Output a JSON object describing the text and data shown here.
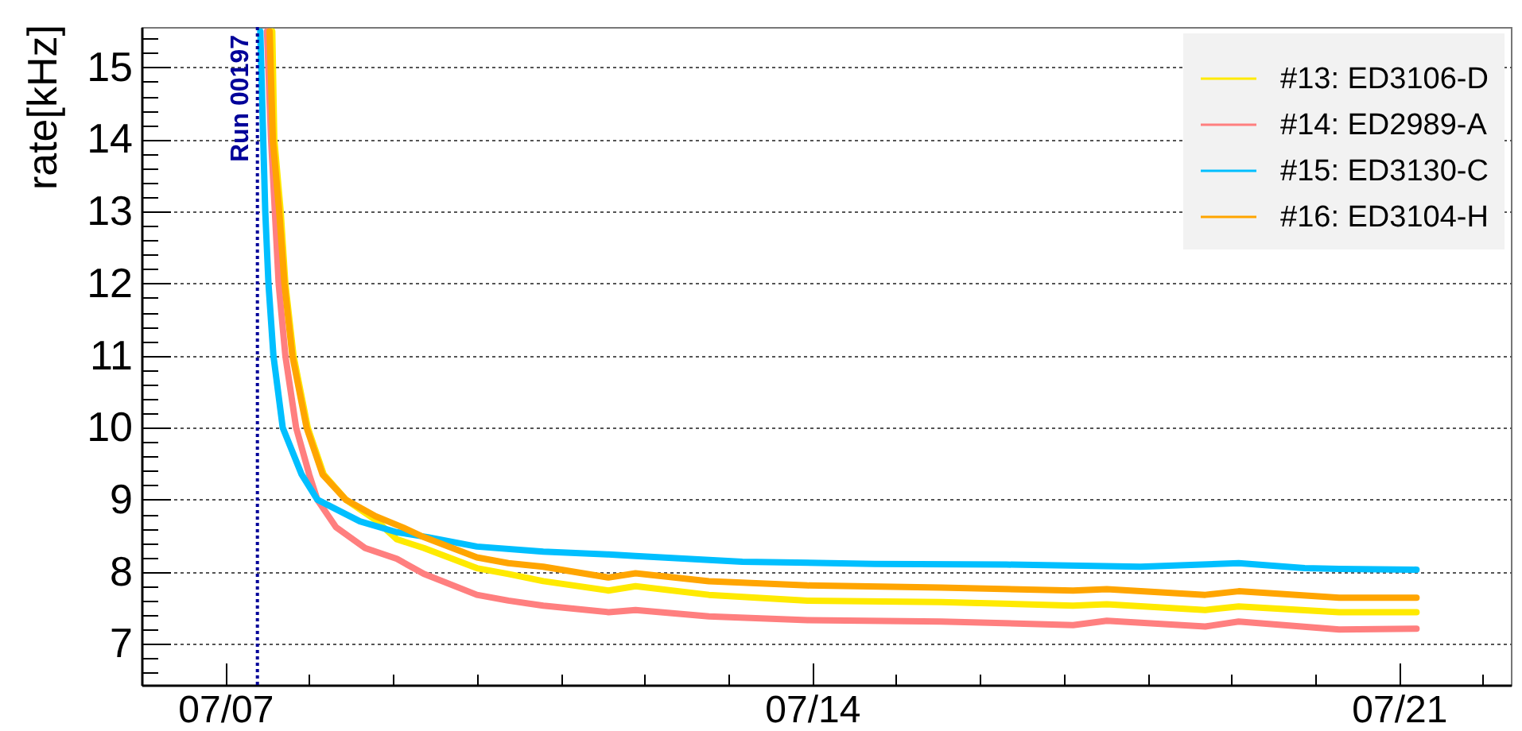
{
  "chart_data": {
    "type": "line",
    "ylabel": "rate[kHz]",
    "xlim": [
      "--07-06",
      "--07-22T08:00"
    ],
    "ylim": [
      6.43,
      15.56
    ],
    "xticks": [
      {
        "value": "--07-07",
        "label": "07/07"
      },
      {
        "value": "--07-08",
        "label": null
      },
      {
        "value": "--07-09",
        "label": null
      },
      {
        "value": "--07-10",
        "label": null
      },
      {
        "value": "--07-11",
        "label": null
      },
      {
        "value": "--07-12",
        "label": null
      },
      {
        "value": "--07-13",
        "label": null
      },
      {
        "value": "--07-14",
        "label": "07/14"
      },
      {
        "value": "--07-15",
        "label": null
      },
      {
        "value": "--07-16",
        "label": null
      },
      {
        "value": "--07-17",
        "label": null
      },
      {
        "value": "--07-18",
        "label": null
      },
      {
        "value": "--07-19",
        "label": null
      },
      {
        "value": "--07-20",
        "label": null
      },
      {
        "value": "--07-21",
        "label": "07/21"
      },
      {
        "value": "--07-22",
        "label": null
      }
    ],
    "yticks": [
      {
        "value": 6.6,
        "label": null
      },
      {
        "value": 6.8,
        "label": null
      },
      7,
      {
        "value": 7.2,
        "label": null
      },
      {
        "value": 7.4,
        "label": null
      },
      {
        "value": 7.6,
        "label": null
      },
      {
        "value": 7.8,
        "label": null
      },
      8,
      {
        "value": 8.2,
        "label": null
      },
      {
        "value": 8.4,
        "label": null
      },
      {
        "value": 8.6,
        "label": null
      },
      {
        "value": 8.8,
        "label": null
      },
      9,
      {
        "value": 9.2,
        "label": null
      },
      {
        "value": 9.4,
        "label": null
      },
      {
        "value": 9.6,
        "label": null
      },
      {
        "value": 9.8,
        "label": null
      },
      10,
      {
        "value": 10.2,
        "label": null
      },
      {
        "value": 10.4,
        "label": null
      },
      {
        "value": 10.6,
        "label": null
      },
      {
        "value": 10.8,
        "label": null
      },
      11,
      {
        "value": 11.2,
        "label": null
      },
      {
        "value": 11.4,
        "label": null
      },
      {
        "value": 11.6,
        "label": null
      },
      {
        "value": 11.8,
        "label": null
      },
      12,
      {
        "value": 12.2,
        "label": null
      },
      {
        "value": 12.4,
        "label": null
      },
      {
        "value": 12.6,
        "label": null
      },
      {
        "value": 12.8,
        "label": null
      },
      13,
      {
        "value": 13.2,
        "label": null
      },
      {
        "value": 13.4,
        "label": null
      },
      {
        "value": 13.6,
        "label": null
      },
      {
        "value": 13.8,
        "label": null
      },
      14,
      {
        "value": 14.2,
        "label": null
      },
      {
        "value": 14.4,
        "label": null
      },
      {
        "value": 14.6,
        "label": null
      },
      {
        "value": 14.8,
        "label": null
      },
      15,
      {
        "value": 15.2,
        "label": null
      },
      {
        "value": 15.4,
        "label": null
      }
    ],
    "grid": "y",
    "legend": "top right",
    "ref_lines": [
      {
        "axis": "x",
        "value": "--07-07T09:10",
        "label": "Run 00197",
        "color": "#000099",
        "line_style": "dotted"
      }
    ],
    "series": [
      {
        "name": "#13: ED3106-D",
        "color": "#ffea00",
        "x": [
          "--07-07T13:25",
          "--07-07T14:00",
          "--07-07T15:50",
          "--07-07T17:10",
          "--07-07T19:30",
          "--07-07T23:35",
          "--07-08T04:10",
          "--07-08T10:30",
          "--07-08T19:00",
          "--07-09T01:05",
          "--07-09T08:50",
          "--07-10T00:00",
          "--07-10T09:00",
          "--07-10T19:00",
          "--07-11T13:40",
          "--07-11T21:25",
          "--07-12T18:25",
          "--07-13T22:40",
          "--07-15T12:55",
          "--07-17T02:40",
          "--07-17T12:20",
          "--07-18T16:30",
          "--07-19T02:05",
          "--07-20T06:50",
          "--07-21T05:00"
        ],
        "values": [
          15.5,
          14.0,
          13.0,
          12.0,
          11.0,
          10.0,
          9.35,
          9.0,
          8.72,
          8.45,
          8.33,
          8.05,
          7.97,
          7.87,
          7.74,
          7.8,
          7.68,
          7.6,
          7.58,
          7.53,
          7.55,
          7.47,
          7.52,
          7.44,
          7.44
        ]
      },
      {
        "name": "#14: ED2989-A",
        "color": "#ff7f7f",
        "x": [
          "--07-07T11:55",
          "--07-07T13:05",
          "--07-07T14:10",
          "--07-07T15:15",
          "--07-07T17:10",
          "--07-07T20:15",
          "--07-08T00:00",
          "--07-08T02:20",
          "--07-08T07:40",
          "--07-08T16:00",
          "--07-09T01:05",
          "--07-09T08:50",
          "--07-10T00:00",
          "--07-10T09:00",
          "--07-10T19:00",
          "--07-11T13:40",
          "--07-11T21:25",
          "--07-12T18:25",
          "--07-13T22:40",
          "--07-15T12:55",
          "--07-17T02:40",
          "--07-17T12:20",
          "--07-18T16:30",
          "--07-19T02:05",
          "--07-20T06:50",
          "--07-21T05:00"
        ],
        "values": [
          15.5,
          14.0,
          13.0,
          12.0,
          11.0,
          10.0,
          9.35,
          9.0,
          8.62,
          8.33,
          8.18,
          7.97,
          7.68,
          7.6,
          7.53,
          7.44,
          7.47,
          7.38,
          7.33,
          7.31,
          7.26,
          7.32,
          7.24,
          7.31,
          7.2,
          7.21
        ]
      },
      {
        "name": "#15: ED3130-C",
        "color": "#00bfff",
        "x": [
          "--07-07T10:00",
          "--07-07T10:50",
          "--07-07T11:25",
          "--07-07T12:20",
          "--07-07T13:45",
          "--07-07T16:25",
          "--07-07T21:50",
          "--07-08T02:20",
          "--07-08T14:30",
          "--07-09T01:00",
          "--07-09T10:00",
          "--07-10T00:00",
          "--07-10T19:00",
          "--07-11T13:40",
          "--07-11T21:25",
          "--07-13T04:00",
          "--07-14T17:50",
          "--07-16T07:35",
          "--07-17T21:55",
          "--07-19T02:05",
          "--07-19T21:00",
          "--07-20T06:50",
          "--07-21T05:00"
        ],
        "values": [
          15.5,
          14.0,
          13.0,
          12.0,
          11.0,
          10.0,
          9.35,
          9.0,
          8.7,
          8.55,
          8.48,
          8.35,
          8.28,
          8.24,
          8.22,
          8.14,
          8.11,
          8.1,
          8.07,
          8.12,
          8.05,
          8.04,
          8.03
        ]
      },
      {
        "name": "#16: ED3104-H",
        "color": "#ffa500",
        "x": [
          "--07-07T12:40",
          "--07-07T13:35",
          "--07-07T15:25",
          "--07-07T16:55",
          "--07-07T19:10",
          "--07-07T23:15",
          "--07-08T03:50",
          "--07-08T10:30",
          "--07-08T19:00",
          "--07-09T02:35",
          "--07-09T08:50",
          "--07-10T00:00",
          "--07-10T09:00",
          "--07-10T19:00",
          "--07-11T13:40",
          "--07-11T21:25",
          "--07-12T18:25",
          "--07-13T22:40",
          "--07-15T12:55",
          "--07-17T02:40",
          "--07-17T12:20",
          "--07-18T16:30",
          "--07-19T02:05",
          "--07-20T06:50",
          "--07-21T05:00"
        ],
        "values": [
          15.5,
          14.0,
          13.0,
          12.0,
          11.0,
          10.0,
          9.35,
          9.0,
          8.77,
          8.62,
          8.48,
          8.2,
          8.12,
          8.07,
          7.92,
          7.98,
          7.87,
          7.81,
          7.78,
          7.74,
          7.76,
          7.68,
          7.73,
          7.64,
          7.64
        ]
      }
    ]
  }
}
